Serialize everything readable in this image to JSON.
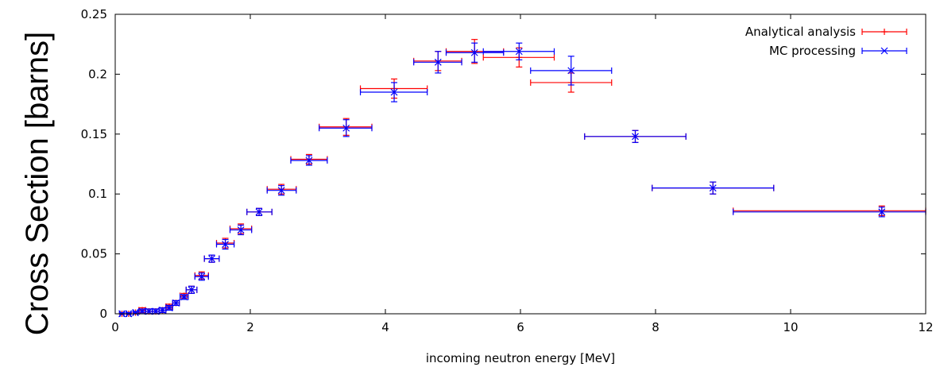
{
  "chart_data": {
    "type": "scatter",
    "title": "",
    "xlabel": "incoming neutron energy [MeV]",
    "ylabel": "Cross Section [barns]",
    "xlim": [
      0,
      12
    ],
    "ylim": [
      0,
      0.25
    ],
    "xticks": [
      0,
      2,
      4,
      6,
      8,
      10,
      12
    ],
    "yticks": [
      0,
      0.05,
      0.1,
      0.15,
      0.2,
      0.25
    ],
    "xtick_labels": [
      "0",
      "2",
      "4",
      "6",
      "8",
      "10",
      "12"
    ],
    "ytick_labels": [
      "0",
      "0.05",
      "0.1",
      "0.15",
      "0.2",
      "0.25"
    ],
    "grid": false,
    "legend_position": "top-right",
    "series": [
      {
        "name": "Analytical analysis",
        "color": "#ff0000",
        "marker": "plus",
        "points": [
          {
            "x": 0.1,
            "y": 0.0,
            "xlo": 0.07,
            "xhi": 0.13,
            "yerr": 0.001
          },
          {
            "x": 0.2,
            "y": 0.0,
            "xlo": 0.17,
            "xhi": 0.23,
            "yerr": 0.001
          },
          {
            "x": 0.3,
            "y": 0.001,
            "xlo": 0.27,
            "xhi": 0.33,
            "yerr": 0.001
          },
          {
            "x": 0.4,
            "y": 0.003,
            "xlo": 0.35,
            "xhi": 0.45,
            "yerr": 0.002
          },
          {
            "x": 0.5,
            "y": 0.002,
            "xlo": 0.45,
            "xhi": 0.55,
            "yerr": 0.002
          },
          {
            "x": 0.6,
            "y": 0.002,
            "xlo": 0.55,
            "xhi": 0.65,
            "yerr": 0.002
          },
          {
            "x": 0.7,
            "y": 0.003,
            "xlo": 0.65,
            "xhi": 0.75,
            "yerr": 0.002
          },
          {
            "x": 0.8,
            "y": 0.006,
            "xlo": 0.75,
            "xhi": 0.85,
            "yerr": 0.002
          },
          {
            "x": 0.9,
            "y": 0.009,
            "xlo": 0.85,
            "xhi": 0.95,
            "yerr": 0.002
          },
          {
            "x": 1.02,
            "y": 0.015,
            "xlo": 0.96,
            "xhi": 1.08,
            "yerr": 0.002
          },
          {
            "x": 1.13,
            "y": 0.02,
            "xlo": 1.05,
            "xhi": 1.21,
            "yerr": 0.003
          },
          {
            "x": 1.28,
            "y": 0.032,
            "xlo": 1.18,
            "xhi": 1.38,
            "yerr": 0.003
          },
          {
            "x": 1.43,
            "y": 0.046,
            "xlo": 1.32,
            "xhi": 1.54,
            "yerr": 0.003
          },
          {
            "x": 1.63,
            "y": 0.059,
            "xlo": 1.5,
            "xhi": 1.76,
            "yerr": 0.004
          },
          {
            "x": 1.86,
            "y": 0.071,
            "xlo": 1.7,
            "xhi": 2.02,
            "yerr": 0.004
          },
          {
            "x": 2.13,
            "y": 0.085,
            "xlo": 1.95,
            "xhi": 2.32,
            "yerr": 0.003
          },
          {
            "x": 2.46,
            "y": 0.104,
            "xlo": 2.25,
            "xhi": 2.68,
            "yerr": 0.004
          },
          {
            "x": 2.87,
            "y": 0.129,
            "xlo": 2.6,
            "xhi": 3.14,
            "yerr": 0.004
          },
          {
            "x": 3.42,
            "y": 0.156,
            "xlo": 3.02,
            "xhi": 3.8,
            "yerr": 0.007
          },
          {
            "x": 4.13,
            "y": 0.188,
            "xlo": 3.63,
            "xhi": 4.62,
            "yerr": 0.008
          },
          {
            "x": 4.78,
            "y": 0.211,
            "xlo": 4.42,
            "xhi": 5.13,
            "yerr": 0.008
          },
          {
            "x": 5.32,
            "y": 0.219,
            "xlo": 4.9,
            "xhi": 5.75,
            "yerr": 0.01
          },
          {
            "x": 5.98,
            "y": 0.214,
            "xlo": 5.45,
            "xhi": 6.5,
            "yerr": 0.008
          },
          {
            "x": 6.75,
            "y": 0.193,
            "xlo": 6.15,
            "xhi": 7.35,
            "yerr": 0.008
          },
          {
            "x": 7.7,
            "y": 0.148,
            "xlo": 6.95,
            "xhi": 8.45,
            "yerr": 0.005
          },
          {
            "x": 8.85,
            "y": 0.105,
            "xlo": 7.95,
            "xhi": 9.75,
            "yerr": 0.005
          },
          {
            "x": 11.35,
            "y": 0.086,
            "xlo": 9.15,
            "xhi": 12.0,
            "yerr": 0.004
          }
        ]
      },
      {
        "name": "MC processing",
        "color": "#0000ff",
        "marker": "x",
        "points": [
          {
            "x": 0.1,
            "y": 0.0,
            "xlo": 0.07,
            "xhi": 0.13,
            "yerr": 0.001
          },
          {
            "x": 0.2,
            "y": 0.0,
            "xlo": 0.17,
            "xhi": 0.23,
            "yerr": 0.001
          },
          {
            "x": 0.3,
            "y": 0.001,
            "xlo": 0.27,
            "xhi": 0.33,
            "yerr": 0.001
          },
          {
            "x": 0.4,
            "y": 0.002,
            "xlo": 0.35,
            "xhi": 0.45,
            "yerr": 0.002
          },
          {
            "x": 0.5,
            "y": 0.002,
            "xlo": 0.45,
            "xhi": 0.55,
            "yerr": 0.002
          },
          {
            "x": 0.6,
            "y": 0.002,
            "xlo": 0.55,
            "xhi": 0.65,
            "yerr": 0.002
          },
          {
            "x": 0.7,
            "y": 0.003,
            "xlo": 0.65,
            "xhi": 0.75,
            "yerr": 0.002
          },
          {
            "x": 0.8,
            "y": 0.005,
            "xlo": 0.75,
            "xhi": 0.85,
            "yerr": 0.002
          },
          {
            "x": 0.9,
            "y": 0.009,
            "xlo": 0.85,
            "xhi": 0.95,
            "yerr": 0.002
          },
          {
            "x": 1.02,
            "y": 0.014,
            "xlo": 0.96,
            "xhi": 1.08,
            "yerr": 0.002
          },
          {
            "x": 1.13,
            "y": 0.02,
            "xlo": 1.05,
            "xhi": 1.21,
            "yerr": 0.003
          },
          {
            "x": 1.28,
            "y": 0.031,
            "xlo": 1.18,
            "xhi": 1.38,
            "yerr": 0.003
          },
          {
            "x": 1.43,
            "y": 0.046,
            "xlo": 1.32,
            "xhi": 1.54,
            "yerr": 0.003
          },
          {
            "x": 1.63,
            "y": 0.058,
            "xlo": 1.5,
            "xhi": 1.76,
            "yerr": 0.004
          },
          {
            "x": 1.86,
            "y": 0.07,
            "xlo": 1.7,
            "xhi": 2.02,
            "yerr": 0.004
          },
          {
            "x": 2.13,
            "y": 0.085,
            "xlo": 1.95,
            "xhi": 2.32,
            "yerr": 0.003
          },
          {
            "x": 2.46,
            "y": 0.103,
            "xlo": 2.25,
            "xhi": 2.68,
            "yerr": 0.004
          },
          {
            "x": 2.87,
            "y": 0.128,
            "xlo": 2.6,
            "xhi": 3.14,
            "yerr": 0.004
          },
          {
            "x": 3.42,
            "y": 0.155,
            "xlo": 3.02,
            "xhi": 3.8,
            "yerr": 0.007
          },
          {
            "x": 4.13,
            "y": 0.185,
            "xlo": 3.63,
            "xhi": 4.62,
            "yerr": 0.008
          },
          {
            "x": 4.78,
            "y": 0.21,
            "xlo": 4.42,
            "xhi": 5.13,
            "yerr": 0.009
          },
          {
            "x": 5.32,
            "y": 0.218,
            "xlo": 4.9,
            "xhi": 5.75,
            "yerr": 0.008
          },
          {
            "x": 5.98,
            "y": 0.219,
            "xlo": 5.45,
            "xhi": 6.5,
            "yerr": 0.007
          },
          {
            "x": 6.75,
            "y": 0.203,
            "xlo": 6.15,
            "xhi": 7.35,
            "yerr": 0.012
          },
          {
            "x": 7.7,
            "y": 0.148,
            "xlo": 6.95,
            "xhi": 8.45,
            "yerr": 0.005
          },
          {
            "x": 8.85,
            "y": 0.105,
            "xlo": 7.95,
            "xhi": 9.75,
            "yerr": 0.005
          },
          {
            "x": 11.35,
            "y": 0.085,
            "xlo": 9.15,
            "xhi": 12.0,
            "yerr": 0.004
          }
        ]
      }
    ]
  }
}
